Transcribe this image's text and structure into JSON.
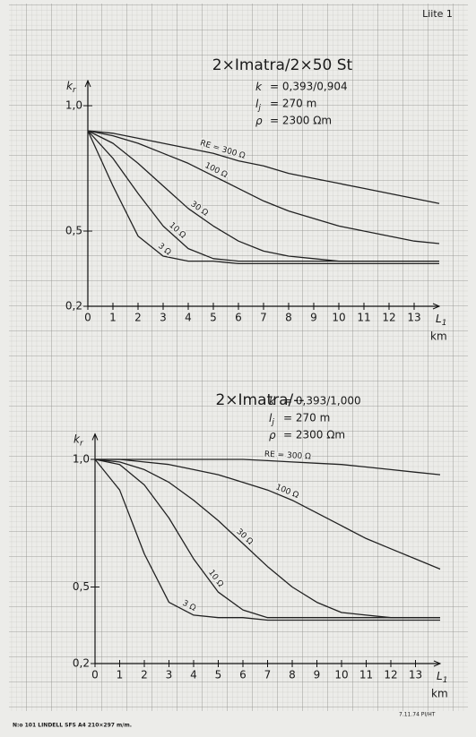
{
  "page": {
    "sheet_label": "Liite 1",
    "footer_left": "N:o 101 LINDELL SFS A4 210×297 m/m.",
    "footer_right": "7.11.74 PI/HT"
  },
  "chart_data": [
    {
      "type": "line",
      "title": "2×Imatra/2×50 St",
      "parameters": [
        {
          "symbol": "k",
          "value": "= 0,393/0,904"
        },
        {
          "symbol": "l",
          "subscript": "j",
          "value": "= 270 m"
        },
        {
          "symbol": "ρ",
          "value": "= 2300 Ωm"
        }
      ],
      "ylabel": {
        "symbol": "k",
        "subscript": "r"
      },
      "xlabel": {
        "symbol": "L",
        "subscript": "1"
      },
      "xunit": "km",
      "x": [
        0,
        1,
        2,
        3,
        4,
        5,
        6,
        7,
        8,
        9,
        10,
        11,
        12,
        13,
        14
      ],
      "series": [
        {
          "name": "RE = 300 Ω",
          "color": "#222",
          "values": [
            0.9,
            0.89,
            0.87,
            0.85,
            0.83,
            0.81,
            0.78,
            0.76,
            0.73,
            0.71,
            0.69,
            0.67,
            0.65,
            0.63,
            0.61
          ]
        },
        {
          "name": "100 Ω",
          "color": "#222",
          "values": [
            0.9,
            0.88,
            0.85,
            0.81,
            0.77,
            0.72,
            0.67,
            0.62,
            0.58,
            0.55,
            0.52,
            0.5,
            0.48,
            0.46,
            0.45
          ]
        },
        {
          "name": "30 Ω",
          "color": "#222",
          "values": [
            0.9,
            0.85,
            0.77,
            0.68,
            0.59,
            0.52,
            0.46,
            0.42,
            0.4,
            0.39,
            0.38,
            0.38,
            0.38,
            0.38,
            0.38
          ]
        },
        {
          "name": "10 Ω",
          "color": "#222",
          "values": [
            0.9,
            0.79,
            0.65,
            0.52,
            0.43,
            0.39,
            0.38,
            0.38,
            0.38,
            0.38,
            0.38,
            0.38,
            0.38,
            0.38,
            0.38
          ]
        },
        {
          "name": "3 Ω",
          "color": "#222",
          "values": [
            0.9,
            0.68,
            0.48,
            0.4,
            0.38,
            0.38,
            0.37,
            0.37,
            0.37,
            0.37,
            0.37,
            0.37,
            0.37,
            0.37,
            0.37
          ]
        }
      ],
      "xlim": [
        0,
        14
      ],
      "xticks": [
        0,
        1,
        2,
        3,
        4,
        5,
        6,
        7,
        8,
        9,
        10,
        11,
        12,
        13
      ],
      "ylim": [
        0.2,
        1.1
      ],
      "yticks": [
        {
          "value": 1,
          "label": "1,0"
        },
        {
          "value": 0.5,
          "label": "0,5"
        },
        {
          "value": 0.2,
          "label": "0,2"
        }
      ]
    },
    {
      "type": "line",
      "title": "2×Imatra/--",
      "parameters": [
        {
          "symbol": "k",
          "value": "= 0,393/1,000"
        },
        {
          "symbol": "l",
          "subscript": "j",
          "value": "= 270 m"
        },
        {
          "symbol": "ρ",
          "value": "= 2300 Ωm"
        }
      ],
      "ylabel": {
        "symbol": "k",
        "subscript": "r"
      },
      "xlabel": {
        "symbol": "L",
        "subscript": "1"
      },
      "xunit": "km",
      "x": [
        0,
        1,
        2,
        3,
        4,
        5,
        6,
        7,
        8,
        9,
        10,
        11,
        12,
        13,
        14
      ],
      "series": [
        {
          "name": "RE = 300 Ω",
          "color": "#222",
          "values": [
            1,
            1,
            1,
            1,
            1,
            1,
            1,
            0.995,
            0.99,
            0.985,
            0.98,
            0.97,
            0.96,
            0.95,
            0.94
          ]
        },
        {
          "name": "100 Ω",
          "color": "#222",
          "values": [
            1,
            1,
            0.99,
            0.98,
            0.96,
            0.94,
            0.91,
            0.88,
            0.84,
            0.79,
            0.74,
            0.69,
            0.65,
            0.61,
            0.57
          ]
        },
        {
          "name": "30 Ω",
          "color": "#222",
          "values": [
            1,
            0.99,
            0.96,
            0.91,
            0.84,
            0.76,
            0.67,
            0.58,
            0.5,
            0.44,
            0.4,
            0.39,
            0.38,
            0.38,
            0.38
          ]
        },
        {
          "name": "10 Ω",
          "color": "#222",
          "values": [
            1,
            0.98,
            0.9,
            0.77,
            0.61,
            0.48,
            0.41,
            0.38,
            0.38,
            0.38,
            0.38,
            0.38,
            0.38,
            0.38,
            0.38
          ]
        },
        {
          "name": "3 Ω",
          "color": "#222",
          "values": [
            1,
            0.88,
            0.63,
            0.44,
            0.39,
            0.38,
            0.38,
            0.37,
            0.37,
            0.37,
            0.37,
            0.37,
            0.37,
            0.37,
            0.37
          ]
        }
      ],
      "xlim": [
        0,
        14
      ],
      "xticks": [
        0,
        1,
        2,
        3,
        4,
        5,
        6,
        7,
        8,
        9,
        10,
        11,
        12,
        13
      ],
      "ylim": [
        0.2,
        1.1
      ],
      "yticks": [
        {
          "value": 1,
          "label": "1,0"
        },
        {
          "value": 0.5,
          "label": "0,5"
        },
        {
          "value": 0.2,
          "label": "0,2"
        }
      ]
    }
  ]
}
